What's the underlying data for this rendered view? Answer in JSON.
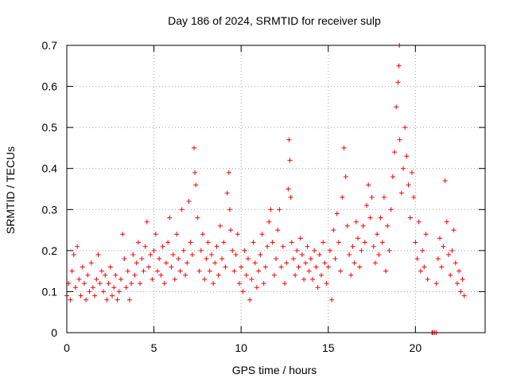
{
  "chart_data": {
    "type": "scatter",
    "title": "Day 186 of 2024, SRMTID for receiver sulp",
    "xlabel": "GPS time / hours",
    "ylabel": "SRMTID / TECUs",
    "xlim": [
      0,
      24
    ],
    "ylim": [
      0,
      0.7
    ],
    "xticks": [
      0,
      5,
      10,
      15,
      20
    ],
    "yticks": [
      0,
      0.1,
      0.2,
      0.3,
      0.4,
      0.5,
      0.6,
      0.7
    ],
    "xtick_labels": [
      "0",
      "5",
      "10",
      "15",
      "20"
    ],
    "ytick_labels": [
      "0",
      "0.1",
      "0.2",
      "0.3",
      "0.4",
      "0.5",
      "0.6",
      "0.7"
    ],
    "grid": true,
    "marker": "+",
    "color": "#ff0000",
    "series": [
      {
        "name": "SRMTID",
        "points": [
          [
            0.0,
            0.09
          ],
          [
            0.1,
            0.12
          ],
          [
            0.2,
            0.08
          ],
          [
            0.3,
            0.15
          ],
          [
            0.4,
            0.19
          ],
          [
            0.5,
            0.11
          ],
          [
            0.6,
            0.21
          ],
          [
            0.7,
            0.13
          ],
          [
            0.8,
            0.09
          ],
          [
            0.9,
            0.16
          ],
          [
            1.0,
            0.12
          ],
          [
            1.1,
            0.08
          ],
          [
            1.2,
            0.14
          ],
          [
            1.3,
            0.1
          ],
          [
            1.4,
            0.17
          ],
          [
            1.5,
            0.11
          ],
          [
            1.6,
            0.09
          ],
          [
            1.7,
            0.13
          ],
          [
            1.8,
            0.19
          ],
          [
            1.9,
            0.12
          ],
          [
            2.0,
            0.15
          ],
          [
            2.1,
            0.1
          ],
          [
            2.2,
            0.14
          ],
          [
            2.3,
            0.08
          ],
          [
            2.4,
            0.12
          ],
          [
            2.5,
            0.16
          ],
          [
            2.6,
            0.09
          ],
          [
            2.7,
            0.11
          ],
          [
            2.8,
            0.14
          ],
          [
            2.9,
            0.08
          ],
          [
            3.0,
            0.1
          ],
          [
            3.1,
            0.13
          ],
          [
            3.2,
            0.24
          ],
          [
            3.3,
            0.18
          ],
          [
            3.4,
            0.11
          ],
          [
            3.5,
            0.15
          ],
          [
            3.6,
            0.08
          ],
          [
            3.7,
            0.12
          ],
          [
            3.8,
            0.19
          ],
          [
            3.9,
            0.14
          ],
          [
            4.0,
            0.17
          ],
          [
            4.1,
            0.22
          ],
          [
            4.2,
            0.12
          ],
          [
            4.3,
            0.18
          ],
          [
            4.4,
            0.15
          ],
          [
            4.5,
            0.21
          ],
          [
            4.6,
            0.27
          ],
          [
            4.7,
            0.16
          ],
          [
            4.8,
            0.19
          ],
          [
            4.9,
            0.13
          ],
          [
            5.0,
            0.2
          ],
          [
            5.1,
            0.24
          ],
          [
            5.2,
            0.15
          ],
          [
            5.3,
            0.18
          ],
          [
            5.4,
            0.14
          ],
          [
            5.5,
            0.21
          ],
          [
            5.6,
            0.12
          ],
          [
            5.7,
            0.17
          ],
          [
            5.8,
            0.22
          ],
          [
            5.9,
            0.28
          ],
          [
            6.0,
            0.16
          ],
          [
            6.1,
            0.19
          ],
          [
            6.2,
            0.13
          ],
          [
            6.3,
            0.24
          ],
          [
            6.4,
            0.18
          ],
          [
            6.5,
            0.15
          ],
          [
            6.6,
            0.3
          ],
          [
            6.7,
            0.2
          ],
          [
            6.8,
            0.14
          ],
          [
            6.9,
            0.17
          ],
          [
            7.0,
            0.32
          ],
          [
            7.1,
            0.22
          ],
          [
            7.2,
            0.19
          ],
          [
            7.3,
            0.45
          ],
          [
            7.35,
            0.39
          ],
          [
            7.4,
            0.36
          ],
          [
            7.5,
            0.28
          ],
          [
            7.6,
            0.15
          ],
          [
            7.7,
            0.2
          ],
          [
            7.8,
            0.24
          ],
          [
            7.9,
            0.13
          ],
          [
            8.0,
            0.18
          ],
          [
            8.1,
            0.22
          ],
          [
            8.2,
            0.15
          ],
          [
            8.3,
            0.19
          ],
          [
            8.4,
            0.12
          ],
          [
            8.5,
            0.17
          ],
          [
            8.6,
            0.21
          ],
          [
            8.7,
            0.14
          ],
          [
            8.8,
            0.26
          ],
          [
            8.9,
            0.18
          ],
          [
            9.0,
            0.22
          ],
          [
            9.1,
            0.16
          ],
          [
            9.2,
            0.34
          ],
          [
            9.3,
            0.39
          ],
          [
            9.35,
            0.3
          ],
          [
            9.4,
            0.25
          ],
          [
            9.5,
            0.2
          ],
          [
            9.6,
            0.15
          ],
          [
            9.7,
            0.19
          ],
          [
            9.8,
            0.24
          ],
          [
            9.9,
            0.12
          ],
          [
            10.0,
            0.16
          ],
          [
            10.1,
            0.1
          ],
          [
            10.2,
            0.2
          ],
          [
            10.3,
            0.14
          ],
          [
            10.4,
            0.18
          ],
          [
            10.5,
            0.08
          ],
          [
            10.6,
            0.13
          ],
          [
            10.7,
            0.22
          ],
          [
            10.8,
            0.17
          ],
          [
            10.9,
            0.11
          ],
          [
            11.0,
            0.15
          ],
          [
            11.1,
            0.19
          ],
          [
            11.2,
            0.24
          ],
          [
            11.3,
            0.12
          ],
          [
            11.4,
            0.16
          ],
          [
            11.5,
            0.21
          ],
          [
            11.6,
            0.27
          ],
          [
            11.7,
            0.3
          ],
          [
            11.8,
            0.22
          ],
          [
            11.9,
            0.14
          ],
          [
            12.0,
            0.18
          ],
          [
            12.1,
            0.25
          ],
          [
            12.2,
            0.3
          ],
          [
            12.3,
            0.16
          ],
          [
            12.4,
            0.21
          ],
          [
            12.5,
            0.12
          ],
          [
            12.6,
            0.17
          ],
          [
            12.7,
            0.35
          ],
          [
            12.75,
            0.47
          ],
          [
            12.8,
            0.42
          ],
          [
            12.85,
            0.33
          ],
          [
            12.9,
            0.22
          ],
          [
            13.0,
            0.18
          ],
          [
            13.1,
            0.14
          ],
          [
            13.2,
            0.2
          ],
          [
            13.3,
            0.16
          ],
          [
            13.4,
            0.23
          ],
          [
            13.5,
            0.19
          ],
          [
            13.6,
            0.13
          ],
          [
            13.7,
            0.17
          ],
          [
            13.8,
            0.21
          ],
          [
            13.9,
            0.15
          ],
          [
            14.0,
            0.18
          ],
          [
            14.1,
            0.13
          ],
          [
            14.2,
            0.2
          ],
          [
            14.3,
            0.16
          ],
          [
            14.4,
            0.11
          ],
          [
            14.5,
            0.19
          ],
          [
            14.6,
            0.14
          ],
          [
            14.7,
            0.22
          ],
          [
            14.8,
            0.17
          ],
          [
            14.9,
            0.12
          ],
          [
            15.0,
            0.16
          ],
          [
            15.1,
            0.2
          ],
          [
            15.2,
            0.08
          ],
          [
            15.3,
            0.25
          ],
          [
            15.4,
            0.18
          ],
          [
            15.5,
            0.29
          ],
          [
            15.6,
            0.22
          ],
          [
            15.7,
            0.15
          ],
          [
            15.8,
            0.33
          ],
          [
            15.9,
            0.45
          ],
          [
            16.0,
            0.38
          ],
          [
            16.1,
            0.26
          ],
          [
            16.2,
            0.19
          ],
          [
            16.3,
            0.14
          ],
          [
            16.4,
            0.21
          ],
          [
            16.5,
            0.17
          ],
          [
            16.6,
            0.27
          ],
          [
            16.7,
            0.23
          ],
          [
            16.8,
            0.16
          ],
          [
            16.9,
            0.2
          ],
          [
            17.0,
            0.26
          ],
          [
            17.1,
            0.22
          ],
          [
            17.2,
            0.31
          ],
          [
            17.3,
            0.36
          ],
          [
            17.4,
            0.28
          ],
          [
            17.5,
            0.33
          ],
          [
            17.6,
            0.21
          ],
          [
            17.7,
            0.17
          ],
          [
            17.8,
            0.24
          ],
          [
            17.9,
            0.19
          ],
          [
            18.0,
            0.28
          ],
          [
            18.1,
            0.22
          ],
          [
            18.2,
            0.33
          ],
          [
            18.3,
            0.15
          ],
          [
            18.4,
            0.26
          ],
          [
            18.5,
            0.2
          ],
          [
            18.6,
            0.3
          ],
          [
            18.7,
            0.38
          ],
          [
            18.8,
            0.44
          ],
          [
            18.9,
            0.55
          ],
          [
            19.0,
            0.61
          ],
          [
            19.05,
            0.65
          ],
          [
            19.1,
            0.47
          ],
          [
            19.2,
            0.34
          ],
          [
            19.3,
            0.4
          ],
          [
            19.4,
            0.5
          ],
          [
            19.5,
            0.43
          ],
          [
            19.6,
            0.36
          ],
          [
            19.7,
            0.28
          ],
          [
            19.8,
            0.39
          ],
          [
            19.9,
            0.33
          ],
          [
            20.0,
            0.22
          ],
          [
            20.1,
            0.18
          ],
          [
            20.2,
            0.27
          ],
          [
            20.3,
            0.15
          ],
          [
            20.4,
            0.2
          ],
          [
            20.5,
            0.16
          ],
          [
            20.6,
            0.24
          ],
          [
            20.7,
            0.13
          ],
          [
            21.2,
            0.12
          ],
          [
            21.3,
            0.18
          ],
          [
            21.4,
            0.23
          ],
          [
            21.5,
            0.16
          ],
          [
            21.6,
            0.21
          ],
          [
            21.7,
            0.37
          ],
          [
            21.8,
            0.27
          ],
          [
            21.9,
            0.19
          ],
          [
            22.0,
            0.14
          ],
          [
            22.1,
            0.2
          ],
          [
            22.2,
            0.25
          ],
          [
            22.3,
            0.17
          ],
          [
            22.4,
            0.12
          ],
          [
            22.5,
            0.15
          ],
          [
            22.6,
            0.1
          ],
          [
            22.7,
            0.13
          ],
          [
            22.8,
            0.09
          ],
          [
            19.08,
            0.7
          ],
          [
            21.0,
            0.0
          ],
          [
            21.1,
            0.0
          ],
          [
            21.2,
            0.0
          ],
          [
            20.95,
            0.0
          ]
        ]
      }
    ]
  }
}
